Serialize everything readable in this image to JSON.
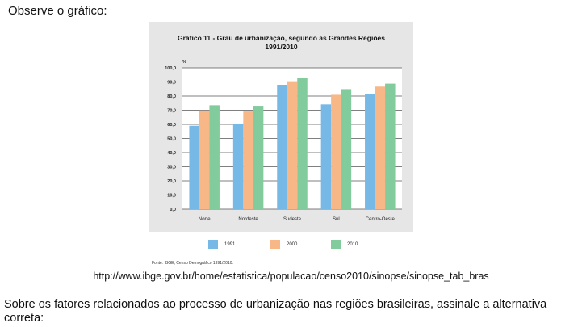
{
  "intro": "Observe o gráfico:",
  "chart_data": {
    "type": "bar",
    "title": "Gráfico 11 - Grau de urbanização, segundo as Grandes Regiões",
    "subtitle": "1991/2010",
    "ylabel": "%",
    "xlabel": "",
    "ylim": [
      0,
      100
    ],
    "yticks": [
      "0,0",
      "10,0",
      "20,0",
      "30,0",
      "40,0",
      "50,0",
      "60,0",
      "70,0",
      "80,0",
      "90,0",
      "100,0"
    ],
    "categories": [
      "Norte",
      "Nordeste",
      "Sudeste",
      "Sul",
      "Centro-Oeste"
    ],
    "series": [
      {
        "name": "1991",
        "color": "#77b9e6",
        "values": [
          59.0,
          60.6,
          88.0,
          74.1,
          81.3
        ]
      },
      {
        "name": "2000",
        "color": "#f7b786",
        "values": [
          69.8,
          69.1,
          90.5,
          80.9,
          86.7
        ]
      },
      {
        "name": "2010",
        "color": "#82cb9c",
        "values": [
          73.5,
          73.1,
          92.9,
          84.9,
          88.8
        ]
      }
    ],
    "grid": true,
    "legend": "bottom"
  },
  "source": "Fonte: IBGE, Censo Demográfico 1991/2010.",
  "url": "http://www.ibge.gov.br/home/estatistica/populacao/censo2010/sinopse/sinopse_tab_bras",
  "question": "Sobre os fatores relacionados ao processo de urbanização nas regiões brasileiras, assinale a alternativa correta:"
}
